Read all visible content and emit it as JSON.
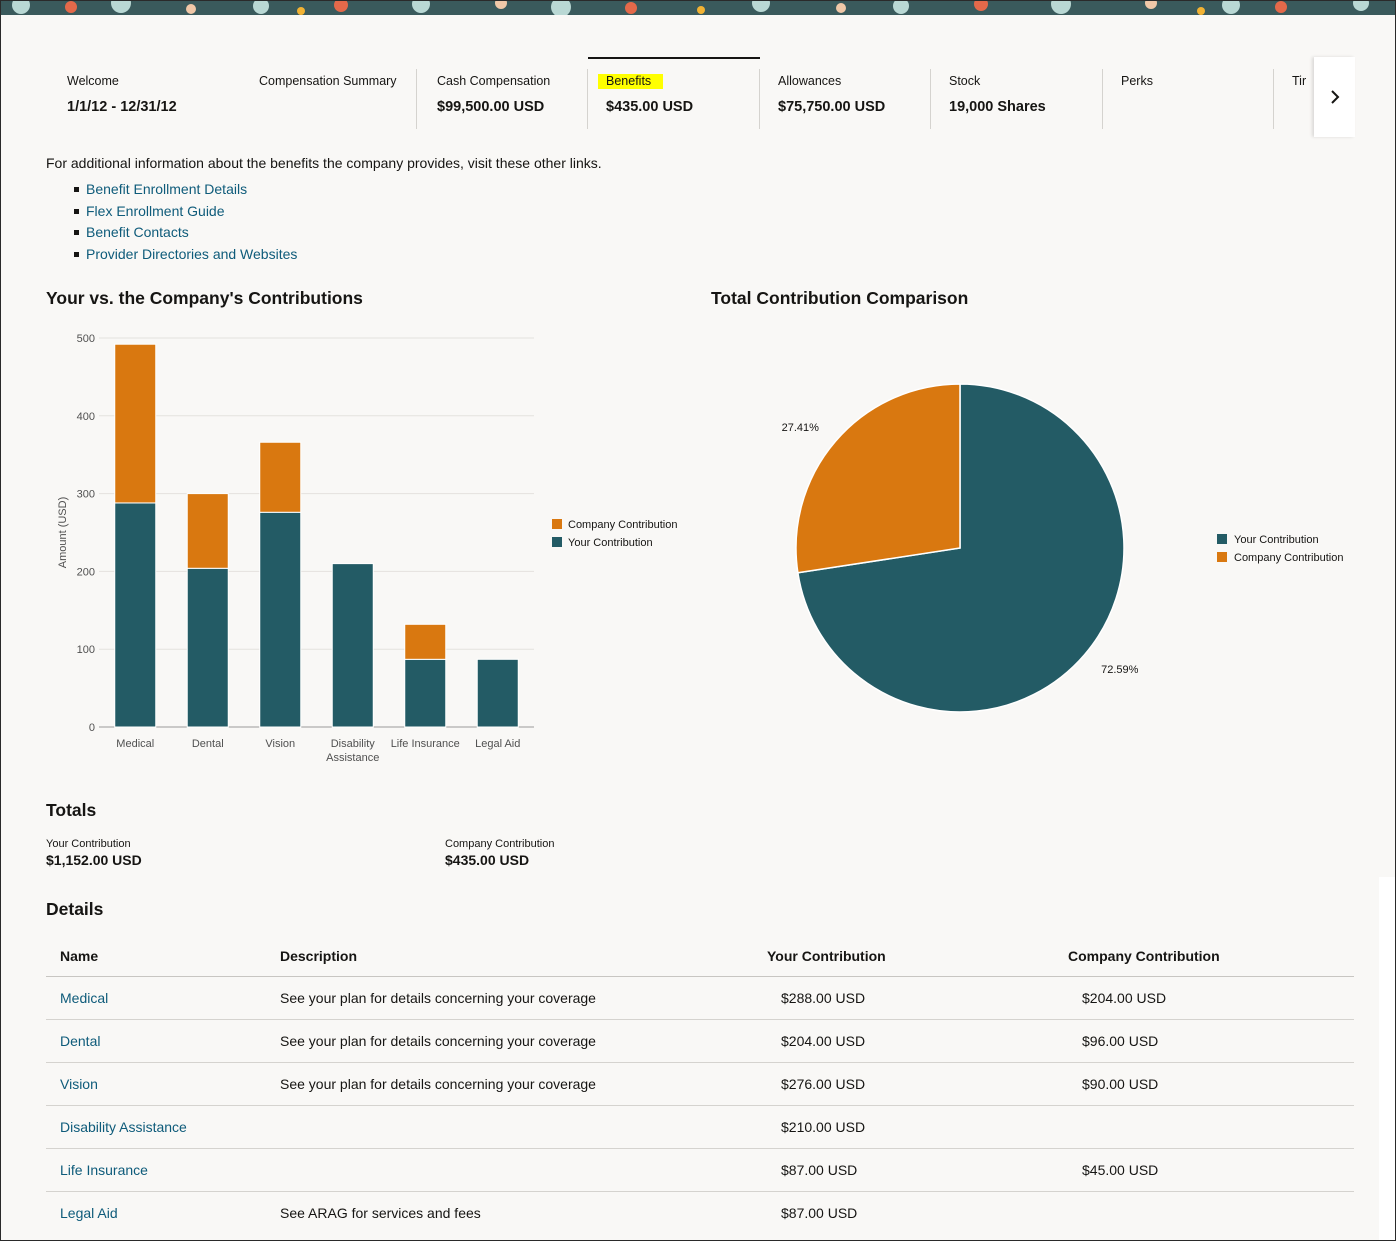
{
  "tabs": [
    {
      "label": "Welcome",
      "value": "1/1/12 - 12/31/12"
    },
    {
      "label": "Compensation Summary",
      "value": ""
    },
    {
      "label": "Cash Compensation",
      "value": "$99,500.00 USD"
    },
    {
      "label": "Benefits",
      "value": "$435.00 USD"
    },
    {
      "label": "Allowances",
      "value": "$75,750.00 USD"
    },
    {
      "label": "Stock",
      "value": "19,000 Shares"
    },
    {
      "label": "Perks",
      "value": ""
    },
    {
      "label": "Tir",
      "value": ""
    }
  ],
  "active_tab": "Benefits",
  "info": {
    "intro": "For additional information about the benefits the company provides, visit these other links.",
    "links": [
      "Benefit Enrollment Details",
      "Flex Enrollment Guide",
      "Benefit Contacts",
      "Provider Directories and Websites"
    ]
  },
  "headings": {
    "bar_chart": "Your vs. the Company's Contributions",
    "pie_chart": "Total Contribution Comparison",
    "totals": "Totals",
    "details": "Details"
  },
  "chart_data": [
    {
      "type": "bar",
      "stacked": true,
      "categories": [
        "Medical",
        "Dental",
        "Vision",
        "Disability Assistance",
        "Life Insurance",
        "Legal Aid"
      ],
      "category_lines": [
        [
          "Medical"
        ],
        [
          "Dental"
        ],
        [
          "Vision"
        ],
        [
          "Disability",
          "Assistance"
        ],
        [
          "Life Insurance"
        ],
        [
          "Legal Aid"
        ]
      ],
      "series": [
        {
          "name": "Your Contribution",
          "values": [
            288,
            204,
            276,
            210,
            87,
            87
          ],
          "color": "#235b65"
        },
        {
          "name": "Company Contribution",
          "values": [
            204,
            96,
            90,
            0,
            45,
            0
          ],
          "color": "#d97810"
        }
      ],
      "legend_order": [
        "Company Contribution",
        "Your Contribution"
      ],
      "legend": "right",
      "ylabel": "Amount (USD)",
      "xlabel": "",
      "ylim": [
        0,
        500
      ],
      "yticks": [
        0,
        100,
        200,
        300,
        400,
        500
      ],
      "grid": true
    },
    {
      "type": "pie",
      "slices": [
        {
          "name": "Your Contribution",
          "value": 72.59,
          "label": "72.59%",
          "color": "#235b65"
        },
        {
          "name": "Company Contribution",
          "value": 27.41,
          "label": "27.41%",
          "color": "#d97810"
        }
      ],
      "legend": "right"
    }
  ],
  "totals": {
    "your_label": "Your Contribution",
    "your_value": "$1,152.00 USD",
    "company_label": "Company Contribution",
    "company_value": "$435.00 USD"
  },
  "details": {
    "columns": [
      "Name",
      "Description",
      "Your Contribution",
      "Company Contribution"
    ],
    "rows": [
      {
        "name": "Medical",
        "description": "See your plan for details concerning your coverage",
        "yours": "$288.00 USD",
        "company": "$204.00 USD"
      },
      {
        "name": "Dental",
        "description": "See your plan for details concerning your coverage",
        "yours": "$204.00 USD",
        "company": "$96.00 USD"
      },
      {
        "name": "Vision",
        "description": "See your plan for details concerning your coverage",
        "yours": "$276.00 USD",
        "company": "$90.00 USD"
      },
      {
        "name": "Disability Assistance",
        "description": "",
        "yours": "$210.00 USD",
        "company": ""
      },
      {
        "name": "Life Insurance",
        "description": "",
        "yours": "$87.00 USD",
        "company": "$45.00 USD"
      },
      {
        "name": "Legal Aid",
        "description": "See ARAG for services and fees",
        "yours": "$87.00 USD",
        "company": ""
      }
    ]
  },
  "icons": {
    "next": "chevron-right-icon"
  },
  "colors": {
    "your": "#235b65",
    "company": "#d97810",
    "link": "#0e5b7a",
    "highlight": "#ffff00"
  }
}
